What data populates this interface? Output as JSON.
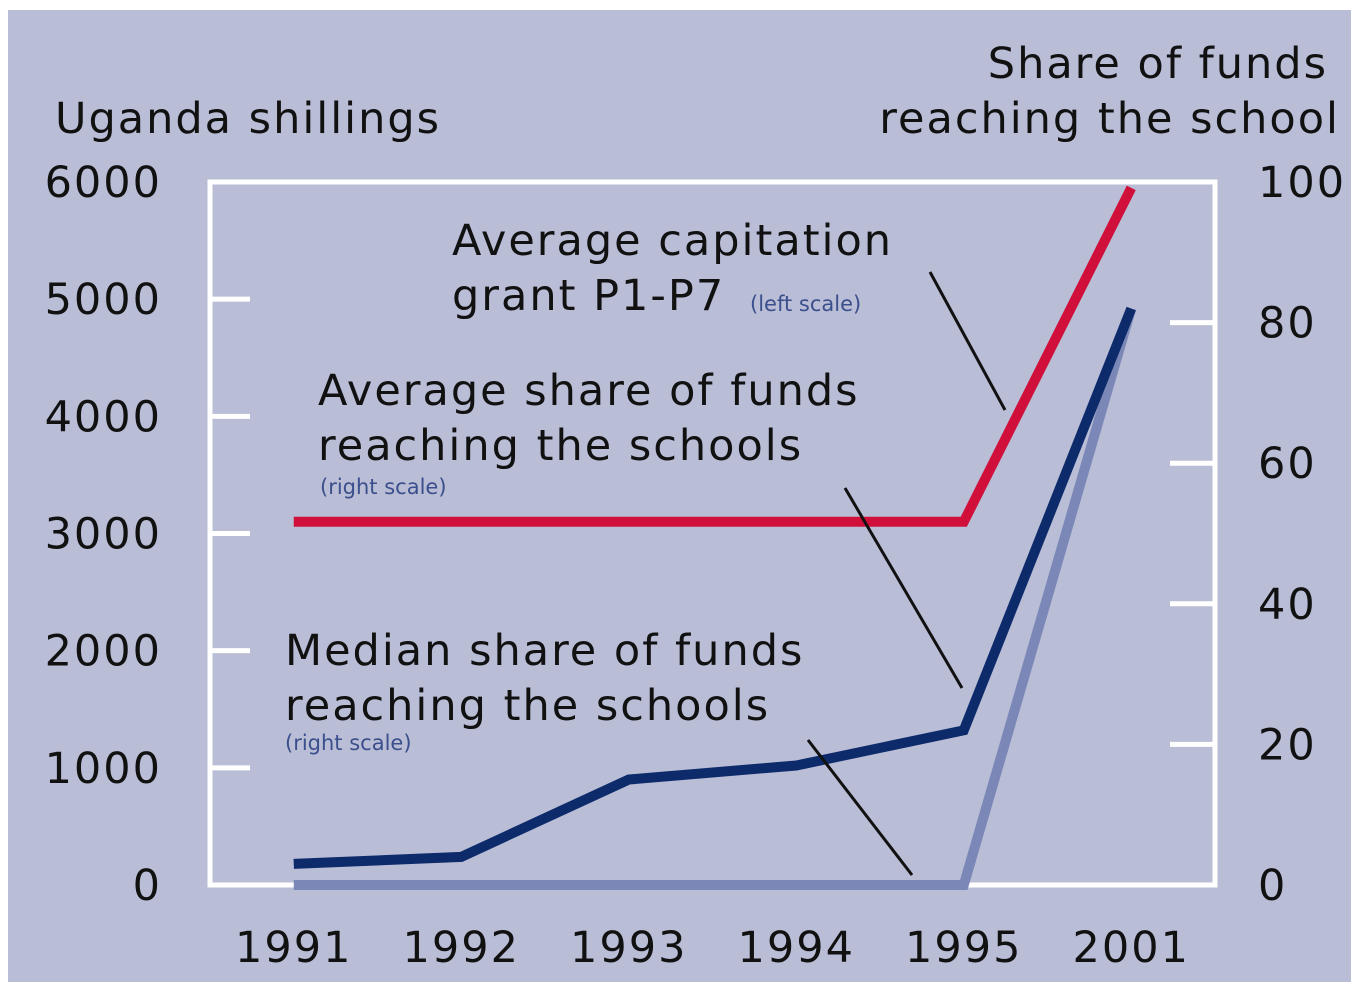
{
  "chart_data": {
    "type": "line",
    "ylabel": "Uganda shillings",
    "y2label": [
      "Share of funds",
      "reaching the school"
    ],
    "categories": [
      "1991",
      "1992",
      "1993",
      "1994",
      "1995",
      "2001"
    ],
    "ylim": [
      0,
      6000
    ],
    "yticks": [
      0,
      1000,
      2000,
      3000,
      4000,
      5000,
      6000
    ],
    "y2lim": [
      0,
      100
    ],
    "y2ticks": [
      0,
      20,
      40,
      60,
      80,
      100
    ],
    "series": [
      {
        "name": [
          "Median share of funds",
          "reaching the schools"
        ],
        "scale": "(right scale)",
        "color": "#7b87b6",
        "axis": "y2",
        "values": [
          0,
          0,
          0,
          0,
          0,
          82
        ]
      },
      {
        "name": [
          "Average share of funds",
          "reaching the schools"
        ],
        "scale": "(right scale)",
        "color": "#0d2a6b",
        "axis": "y2",
        "values": [
          3,
          4,
          15,
          17,
          22,
          82
        ]
      },
      {
        "name": [
          "Average capitation",
          "grant P1-P7"
        ],
        "scale": "(left scale)",
        "color": "#d0103a",
        "axis": "y",
        "values": [
          3100,
          3100,
          3100,
          3100,
          3100,
          5950
        ]
      }
    ]
  }
}
